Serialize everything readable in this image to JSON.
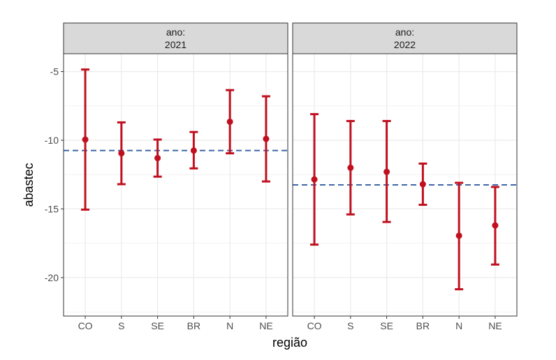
{
  "chart_data": {
    "type": "errorbar",
    "xlabel": "região",
    "ylabel": "abastec",
    "ylim": [
      -22.8,
      -3.7
    ],
    "yticks": [
      -5,
      -10,
      -15,
      -20
    ],
    "ytick_labels": [
      "-5",
      "-10",
      "-15",
      "-20"
    ],
    "categories": [
      "CO",
      "S",
      "SE",
      "BR",
      "N",
      "NE"
    ],
    "colors": {
      "point": "#c0101f",
      "ref_line": "#3f68a8",
      "strip_bg": "#d9d9d9",
      "grid": "#ebebeb"
    },
    "panels": [
      {
        "strip_label": "ano:",
        "strip_value": "2021",
        "reference": -10.75,
        "points": [
          {
            "cat": "CO",
            "y": -9.95,
            "lo": -15.05,
            "hi": -4.85
          },
          {
            "cat": "S",
            "y": -10.95,
            "lo": -13.2,
            "hi": -8.7
          },
          {
            "cat": "SE",
            "y": -11.3,
            "lo": -12.65,
            "hi": -9.95
          },
          {
            "cat": "BR",
            "y": -10.75,
            "lo": -12.05,
            "hi": -9.4
          },
          {
            "cat": "N",
            "y": -8.65,
            "lo": -10.95,
            "hi": -6.35
          },
          {
            "cat": "NE",
            "y": -9.9,
            "lo": -13.0,
            "hi": -6.8
          }
        ]
      },
      {
        "strip_label": "ano:",
        "strip_value": "2022",
        "reference": -13.25,
        "points": [
          {
            "cat": "CO",
            "y": -12.85,
            "lo": -17.6,
            "hi": -8.1
          },
          {
            "cat": "S",
            "y": -12.0,
            "lo": -15.4,
            "hi": -8.6
          },
          {
            "cat": "SE",
            "y": -12.3,
            "lo": -15.95,
            "hi": -8.6
          },
          {
            "cat": "BR",
            "y": -13.2,
            "lo": -14.7,
            "hi": -11.7
          },
          {
            "cat": "N",
            "y": -16.95,
            "lo": -20.85,
            "hi": -13.1
          },
          {
            "cat": "NE",
            "y": -16.2,
            "lo": -19.05,
            "hi": -13.4
          }
        ]
      }
    ]
  }
}
